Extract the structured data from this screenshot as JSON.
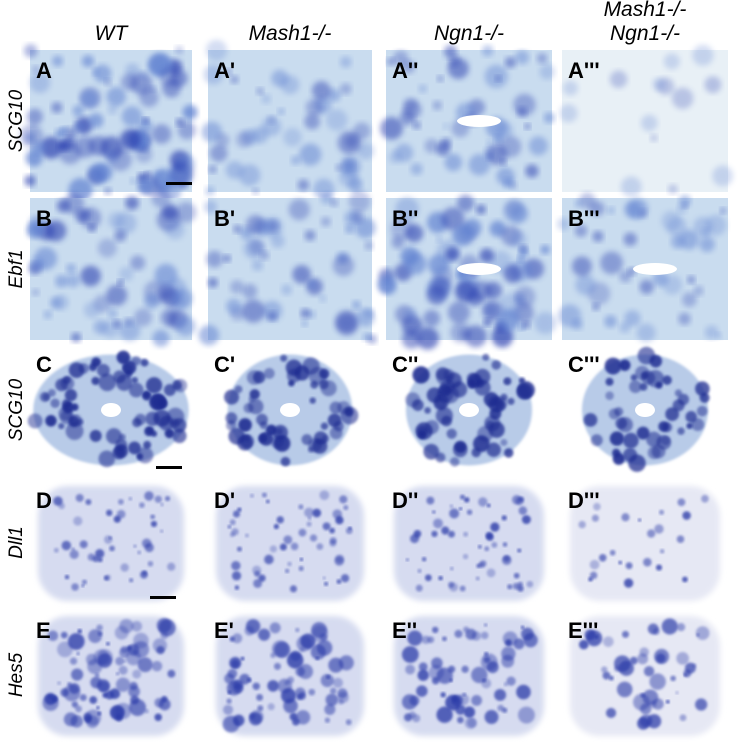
{
  "columns": [
    {
      "lines": [
        "WT"
      ]
    },
    {
      "lines": [
        "Mash1-/-"
      ]
    },
    {
      "lines": [
        "Ngn1-/-"
      ]
    },
    {
      "lines": [
        "Mash1-/-",
        "Ngn1-/-"
      ]
    }
  ],
  "rows": [
    {
      "label": "SCG10",
      "panels": [
        "A",
        "A'",
        "A''",
        "A'''"
      ]
    },
    {
      "label": "Ebf1",
      "panels": [
        "B",
        "B'",
        "B''",
        "B'''"
      ]
    },
    {
      "label": "SCG10",
      "panels": [
        "C",
        "C'",
        "C''",
        "C'''"
      ]
    },
    {
      "label": "Dll1",
      "panels": [
        "D",
        "D'",
        "D''",
        "D'''"
      ]
    },
    {
      "label": "Hes5",
      "panels": [
        "E",
        "E'",
        "E''",
        "E'''"
      ]
    }
  ]
}
